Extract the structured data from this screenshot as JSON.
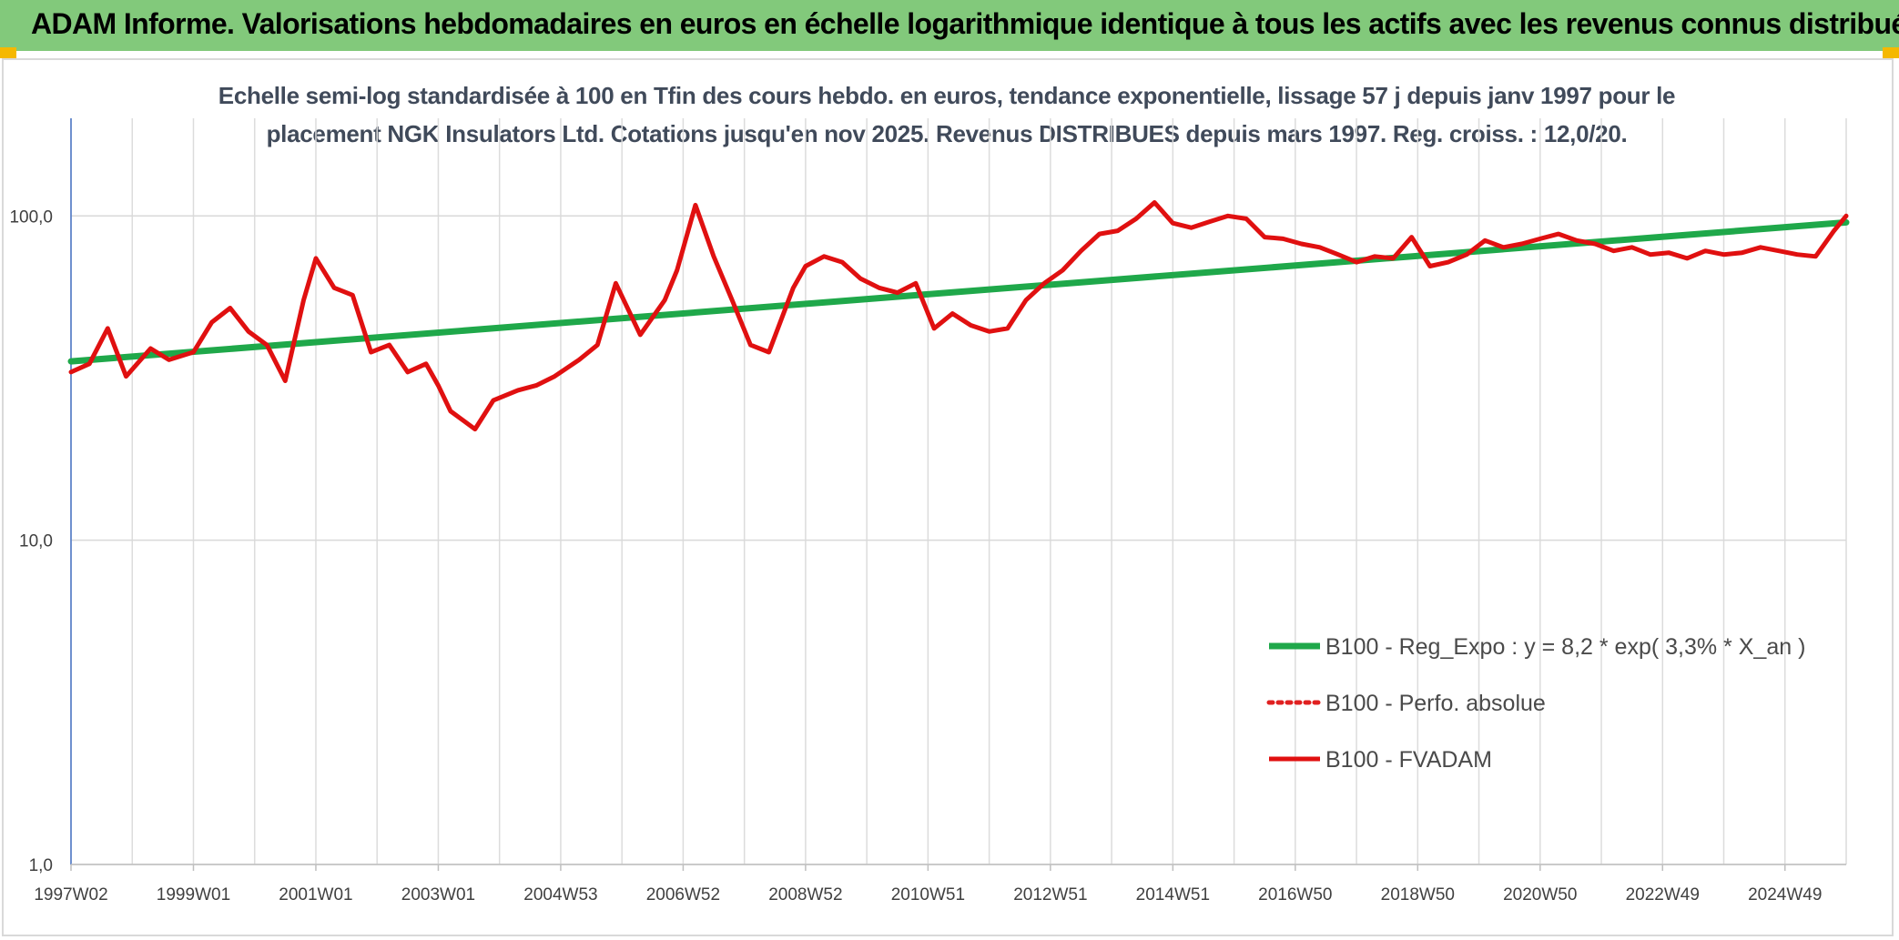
{
  "header": {
    "title": "ADAM Informe. Valorisations hebdomadaires en euros en échelle logarithmique identique à tous les actifs avec les revenus connus distribués"
  },
  "chart_data": {
    "type": "line",
    "title_line1": "Echelle semi-log standardisée à 100 en Tfin des cours hebdo. en euros, tendance exponentielle, lissage 57 j depuis janv 1997 pour le",
    "title_line2": "placement NGK Insulators Ltd. Cotations jusqu'en nov 2025. Revenus DISTRIBUES depuis mars 1997. Reg. croiss. : 12,0/20.",
    "y_scale": "log",
    "ylim": [
      1,
      200
    ],
    "y_ticks": [
      {
        "value": 1,
        "label": "1,0"
      },
      {
        "value": 10,
        "label": "10,0"
      },
      {
        "value": 100,
        "label": "100,0"
      }
    ],
    "xlim": [
      1997.0,
      2026.0
    ],
    "x_ticks": [
      {
        "value": 1997.0,
        "label": "1997W02"
      },
      {
        "value": 1999.0,
        "label": "1999W01"
      },
      {
        "value": 2001.0,
        "label": "2001W01"
      },
      {
        "value": 2003.0,
        "label": "2003W01"
      },
      {
        "value": 2005.0,
        "label": "2004W53"
      },
      {
        "value": 2007.0,
        "label": "2006W52"
      },
      {
        "value": 2009.0,
        "label": "2008W52"
      },
      {
        "value": 2011.0,
        "label": "2010W51"
      },
      {
        "value": 2013.0,
        "label": "2012W51"
      },
      {
        "value": 2015.0,
        "label": "2014W51"
      },
      {
        "value": 2017.0,
        "label": "2016W50"
      },
      {
        "value": 2019.0,
        "label": "2018W50"
      },
      {
        "value": 2021.0,
        "label": "2020W50"
      },
      {
        "value": 2023.0,
        "label": "2022W49"
      },
      {
        "value": 2025.0,
        "label": "2024W49"
      }
    ],
    "legend_position": "bottom-right",
    "series": [
      {
        "name": "B100 - Reg_Expo : y = 8,2 * exp( 3,3% *  X_an )",
        "color": "#1fa84a",
        "style": "solid",
        "x": [
          1997.0,
          2026.0
        ],
        "y": [
          35.6,
          95.5
        ]
      },
      {
        "name": "B100 - Perfo. absolue",
        "color": "#e02020",
        "style": "dotted",
        "x": [],
        "y": []
      },
      {
        "name": "B100 - FVADAM",
        "color": "#e01010",
        "style": "solid",
        "x": [
          1997.0,
          1997.3,
          1997.6,
          1997.9,
          1998.3,
          1998.6,
          1999.0,
          1999.3,
          1999.6,
          1999.9,
          2000.2,
          2000.5,
          2000.8,
          2001.0,
          2001.3,
          2001.6,
          2001.9,
          2002.2,
          2002.5,
          2002.8,
          2003.0,
          2003.2,
          2003.6,
          2003.9,
          2004.3,
          2004.6,
          2004.9,
          2005.3,
          2005.6,
          2005.9,
          2006.3,
          2006.7,
          2006.9,
          2007.2,
          2007.5,
          2007.8,
          2008.1,
          2008.4,
          2008.8,
          2009.0,
          2009.3,
          2009.6,
          2009.9,
          2010.2,
          2010.5,
          2010.8,
          2011.1,
          2011.4,
          2011.7,
          2012.0,
          2012.3,
          2012.6,
          2012.9,
          2013.2,
          2013.5,
          2013.8,
          2014.1,
          2014.4,
          2014.7,
          2015.0,
          2015.3,
          2015.6,
          2015.9,
          2016.2,
          2016.5,
          2016.8,
          2017.1,
          2017.4,
          2017.7,
          2018.0,
          2018.3,
          2018.6,
          2018.9,
          2019.2,
          2019.5,
          2019.8,
          2020.1,
          2020.4,
          2020.7,
          2021.0,
          2021.3,
          2021.6,
          2021.9,
          2022.2,
          2022.5,
          2022.8,
          2023.1,
          2023.4,
          2023.7,
          2024.0,
          2024.3,
          2024.6,
          2024.9,
          2025.2,
          2025.5,
          2025.8,
          2026.0
        ],
        "y": [
          33,
          35,
          45,
          32,
          39,
          36,
          38,
          47,
          52,
          44,
          40,
          31,
          55,
          74,
          60,
          57,
          38,
          40,
          33,
          35,
          30,
          25,
          22,
          27,
          29,
          30,
          32,
          36,
          40,
          62,
          43,
          55,
          68,
          108,
          75,
          55,
          40,
          38,
          60,
          70,
          75,
          72,
          64,
          60,
          58,
          62,
          45,
          50,
          46,
          44,
          45,
          55,
          62,
          68,
          78,
          88,
          90,
          98,
          110,
          95,
          92,
          96,
          100,
          98,
          86,
          85,
          82,
          80,
          76,
          72,
          75,
          74,
          86,
          70,
          72,
          76,
          84,
          80,
          82,
          85,
          88,
          84,
          82,
          78,
          80,
          76,
          77,
          74,
          78,
          76,
          77,
          80,
          78,
          76,
          75,
          90,
          100
        ]
      }
    ]
  }
}
